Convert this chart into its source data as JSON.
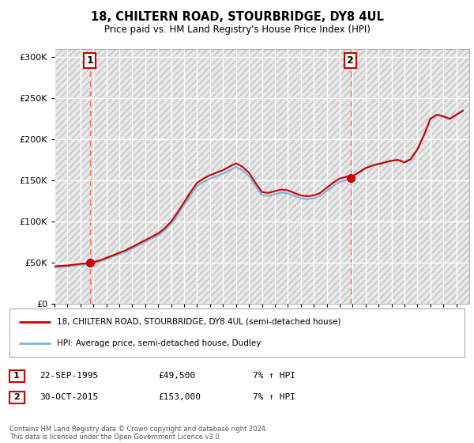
{
  "title": "18, CHILTERN ROAD, STOURBRIDGE, DY8 4UL",
  "subtitle": "Price paid vs. HM Land Registry's House Price Index (HPI)",
  "legend_line1": "18, CHILTERN ROAD, STOURBRIDGE, DY8 4UL (semi-detached house)",
  "legend_line2": "HPI: Average price, semi-detached house, Dudley",
  "annotation1_date": "22-SEP-1995",
  "annotation1_price": "£49,500",
  "annotation1_hpi": "7% ↑ HPI",
  "annotation2_date": "30-OCT-2015",
  "annotation2_price": "£153,000",
  "annotation2_hpi": "7% ↑ HPI",
  "footer": "Contains HM Land Registry data © Crown copyright and database right 2024.\nThis data is licensed under the Open Government Licence v3.0.",
  "sale1_year": 1995.73,
  "sale1_price": 49500,
  "sale2_year": 2015.83,
  "sale2_price": 153000,
  "hpi_color": "#7fb2d9",
  "price_color": "#cc0000",
  "dashed_color": "#ff6666",
  "ylim_min": 0,
  "ylim_max": 310000,
  "xmin": 1993,
  "xmax": 2025
}
